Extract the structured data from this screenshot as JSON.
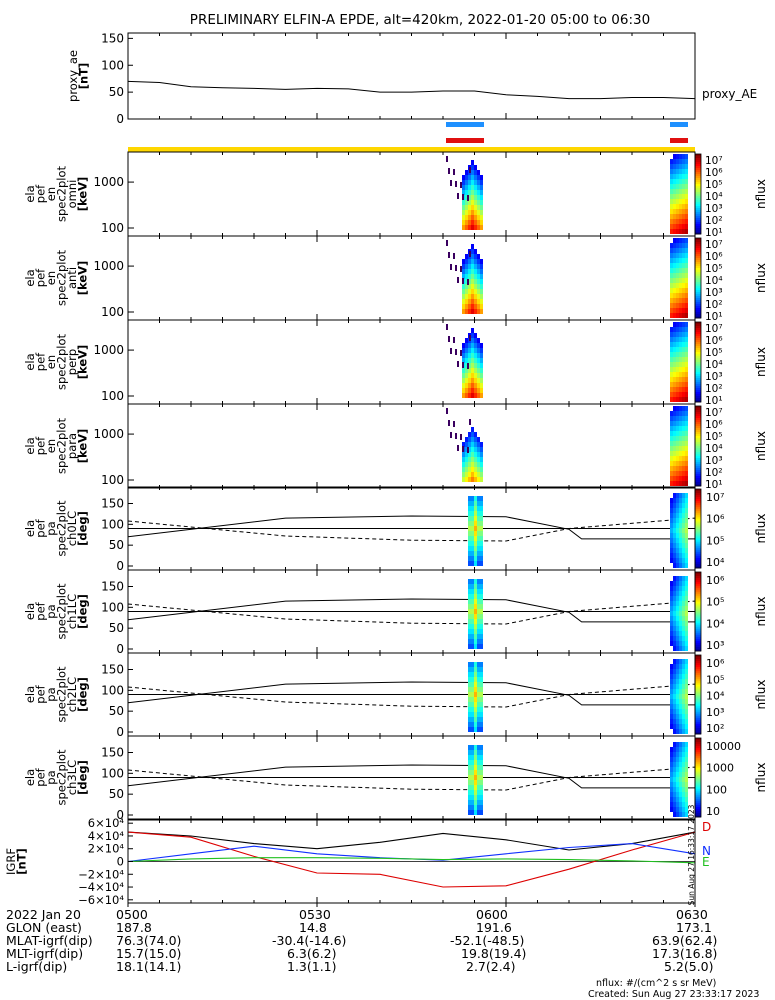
{
  "title": "PRELIMINARY ELFIN-A EPDE, alt=420km, 2022-01-20 05:00 to 06:30",
  "colors": {
    "bar_blue": "#1e90ff",
    "bar_red": "#e01010",
    "bar_yellow": "#ffd700",
    "grf_d": "#dd0000",
    "grf_n": "#1030ff",
    "grf_e": "#20c020"
  },
  "chart_data": {
    "type": "line",
    "x_range_utc": [
      "05:00",
      "06:30"
    ],
    "proxy_ae": {
      "ylabel_lines": [
        "proxy_ae",
        "[nT]"
      ],
      "ticks": [
        "150",
        "100",
        "50",
        "0"
      ],
      "ylim": [
        0,
        160
      ],
      "legend": "proxy_AE",
      "x_min": [
        0,
        5,
        10,
        15,
        20,
        25,
        30,
        35,
        40,
        45,
        50,
        55,
        60,
        65,
        70,
        75,
        80,
        85,
        90
      ],
      "values": [
        70,
        68,
        60,
        58,
        57,
        55,
        57,
        56,
        50,
        50,
        52,
        52,
        45,
        42,
        38,
        38,
        40,
        40,
        38
      ]
    },
    "spectra": [
      {
        "ylabel_lines": [
          "ela",
          "pef",
          "en",
          "spec2plot",
          "omni",
          "[keV]"
        ],
        "ticks": [
          "1000",
          "100"
        ],
        "cbar_ticks": [
          "10⁷",
          "10⁶",
          "10⁵",
          "10⁴",
          "10³",
          "10²",
          "10¹"
        ],
        "cbar_label": "nflux"
      },
      {
        "ylabel_lines": [
          "ela",
          "pef",
          "en",
          "spec2plot",
          "anti",
          "[keV]"
        ],
        "ticks": [
          "1000",
          "100"
        ],
        "cbar_ticks": [
          "10⁷",
          "10⁶",
          "10⁵",
          "10⁴",
          "10³",
          "10²",
          "10¹"
        ],
        "cbar_label": "nflux"
      },
      {
        "ylabel_lines": [
          "ela",
          "pef",
          "en",
          "spec2plot",
          "perp",
          "[keV]"
        ],
        "ticks": [
          "1000",
          "100"
        ],
        "cbar_ticks": [
          "10⁷",
          "10⁶",
          "10⁵",
          "10⁴",
          "10³",
          "10²",
          "10¹"
        ],
        "cbar_label": "nflux"
      },
      {
        "ylabel_lines": [
          "ela",
          "pef",
          "en",
          "spec2plot",
          "para",
          "[keV]"
        ],
        "ticks": [
          "1000",
          "100"
        ],
        "cbar_ticks": [
          "10⁷",
          "10⁶",
          "10⁵",
          "10⁴",
          "10³",
          "10²",
          "10¹"
        ],
        "cbar_label": "nflux"
      }
    ],
    "pitch": [
      {
        "ylabel_lines": [
          "ela",
          "pef",
          "pa",
          "spec2plot",
          "ch0LC",
          "[deg]"
        ],
        "ticks": [
          "150",
          "100",
          "50",
          "0"
        ],
        "cbar_ticks": [
          "10⁷",
          "10⁶",
          "10⁵",
          "10⁴"
        ],
        "cbar_label": "nflux"
      },
      {
        "ylabel_lines": [
          "ela",
          "pef",
          "pa",
          "spec2plot",
          "ch1LC",
          "[deg]"
        ],
        "ticks": [
          "150",
          "100",
          "50",
          "0"
        ],
        "cbar_ticks": [
          "10⁶",
          "10⁵",
          "10⁴",
          "10³"
        ],
        "cbar_label": "nflux"
      },
      {
        "ylabel_lines": [
          "ela",
          "pef",
          "pa",
          "spec2plot",
          "ch2LC",
          "[deg]"
        ],
        "ticks": [
          "150",
          "100",
          "50",
          "0"
        ],
        "cbar_ticks": [
          "10⁶",
          "10⁵",
          "10⁴",
          "10³",
          "10²"
        ],
        "cbar_label": "nflux"
      },
      {
        "ylabel_lines": [
          "ela",
          "pef",
          "pa",
          "spec2plot",
          "ch3LC",
          "[deg]"
        ],
        "ticks": [
          "150",
          "100",
          "50",
          "0"
        ],
        "cbar_ticks": [
          "10000",
          "1000",
          "100",
          "10"
        ],
        "cbar_label": "nflux"
      }
    ],
    "igrf": {
      "ylabel_lines": [
        "IGRF",
        "[nT]"
      ],
      "ticks": [
        "6×10⁴",
        "4×10⁴",
        "2×10⁴",
        "0",
        "−2×10⁴",
        "−4×10⁴",
        "−6×10⁴"
      ],
      "ylim": [
        -65000,
        65000
      ],
      "legend": [
        "D",
        "N",
        "E"
      ],
      "x_min": [
        0,
        10,
        20,
        30,
        40,
        50,
        60,
        70,
        80,
        90
      ],
      "total": [
        46000,
        40000,
        28000,
        20000,
        30000,
        44000,
        34000,
        18000,
        28000,
        46000
      ],
      "d": [
        46000,
        38000,
        8000,
        -18000,
        -20000,
        -40000,
        -38000,
        -12000,
        18000,
        46000
      ],
      "n": [
        0,
        12000,
        24000,
        12000,
        6000,
        2000,
        12000,
        22000,
        28000,
        12000
      ],
      "e": [
        0,
        4000,
        6000,
        6000,
        5000,
        3000,
        4000,
        3000,
        1000,
        -2000
      ]
    },
    "x_tick_labels": [
      "0500",
      "0530",
      "0600",
      "0630"
    ]
  },
  "side_stamp": "Sun Aug 27 16:33:17 2023",
  "footer": {
    "rows": [
      {
        "label": "2022 Jan 20",
        "v0": "0500",
        "v1": "0530",
        "v2": "0600",
        "v3": "0630"
      },
      {
        "label": "GLON (east)",
        "v0": "187.8",
        "v1": "14.8",
        "v2": "191.6",
        "v3": "173.1"
      },
      {
        "label": "MLAT-igrf(dip)",
        "v0": "76.3(74.0)",
        "v1": "-30.4(-14.6)",
        "v2": "-52.1(-48.5)",
        "v3": "63.9(62.4)"
      },
      {
        "label": "MLT-igrf(dip)",
        "v0": "15.7(15.0)",
        "v1": "6.3(6.2)",
        "v2": "19.8(19.4)",
        "v3": "17.3(16.8)"
      },
      {
        "label": "L-igrf(dip)",
        "v0": "18.1(14.1)",
        "v1": "1.3(1.1)",
        "v2": "2.7(2.4)",
        "v3": "5.2(5.0)"
      }
    ],
    "note_units": "nflux: #/(cm^2 s sr MeV)",
    "note_created": "Created: Sun Aug 27 23:33:17 2023"
  }
}
